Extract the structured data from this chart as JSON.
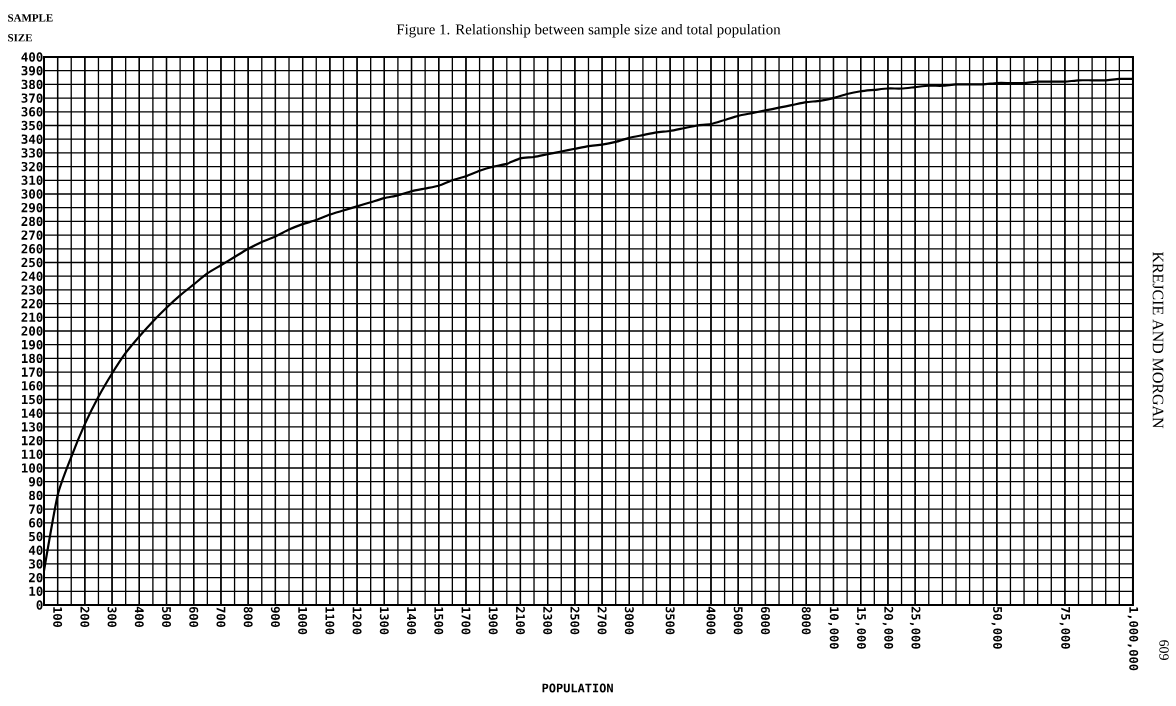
{
  "chart_data": {
    "type": "line",
    "title": "Figure 1.   Relationship between sample size and total population",
    "xlabel": "POPULATION",
    "ylabel": "SAMPLE SIZE",
    "annotations": [
      "KREJCIE AND MORGAN",
      "609"
    ],
    "categories": [
      null,
      "100",
      null,
      "200",
      null,
      "300",
      null,
      "400",
      null,
      "500",
      null,
      "600",
      null,
      "700",
      null,
      "800",
      null,
      "900",
      null,
      "1000",
      null,
      "1100",
      null,
      "1200",
      null,
      "1300",
      null,
      "1400",
      null,
      "1500",
      null,
      "1700",
      null,
      "1900",
      null,
      "2100",
      null,
      "2300",
      null,
      "2500",
      null,
      "2700",
      null,
      "3000",
      null,
      null,
      "3500",
      null,
      null,
      "4000",
      null,
      "5000",
      null,
      "6000",
      null,
      null,
      "8000",
      null,
      "10,000",
      null,
      "15,000",
      null,
      "20,000",
      null,
      "25,000",
      null,
      null,
      null,
      null,
      null,
      "50,000",
      null,
      null,
      null,
      null,
      "75,000",
      null,
      null,
      null,
      null,
      "1,000,000"
    ],
    "ylim": [
      0,
      400
    ],
    "yticks": [
      0,
      10,
      20,
      30,
      40,
      50,
      60,
      70,
      80,
      90,
      100,
      110,
      120,
      130,
      140,
      150,
      160,
      170,
      180,
      190,
      200,
      210,
      220,
      230,
      240,
      250,
      260,
      270,
      280,
      290,
      300,
      310,
      320,
      330,
      340,
      350,
      360,
      370,
      380,
      390,
      400
    ],
    "grid": true,
    "series": [
      {
        "color": "#000000",
        "values": [
          25,
          80,
          108,
          132,
          152,
          169,
          184,
          196,
          207,
          217,
          226,
          234,
          242,
          248,
          254,
          260,
          265,
          269,
          274,
          278,
          281,
          285,
          288,
          291,
          294,
          297,
          299,
          302,
          304,
          306,
          310,
          313,
          317,
          320,
          322,
          326,
          327,
          329,
          331,
          333,
          335,
          336,
          338,
          341,
          343,
          345,
          346,
          348,
          350,
          351,
          354,
          357,
          359,
          361,
          363,
          365,
          367,
          368,
          370,
          373,
          375,
          376,
          377,
          377,
          378,
          379,
          379,
          380,
          380,
          380,
          381,
          381,
          381,
          382,
          382,
          382,
          383,
          383,
          383,
          384,
          384
        ]
      }
    ]
  }
}
